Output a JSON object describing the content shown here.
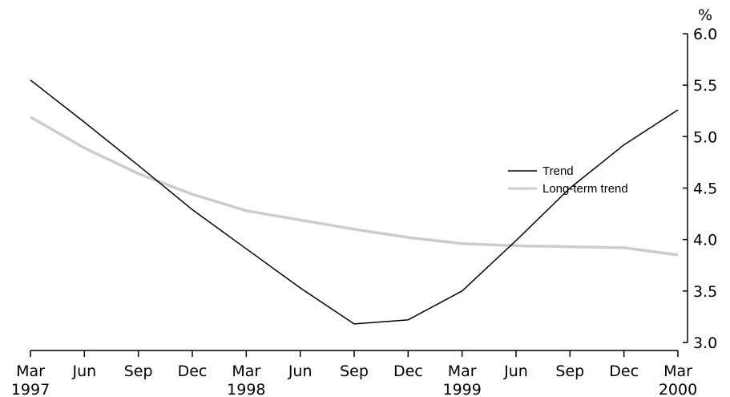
{
  "chart_data": {
    "type": "line",
    "title": "",
    "xlabel": "",
    "ylabel": "%",
    "ylim": [
      3.0,
      6.0
    ],
    "y_ticks": [
      3.0,
      3.5,
      4.0,
      4.5,
      5.0,
      5.5,
      6.0
    ],
    "y_tick_labels": [
      "3.0",
      "3.5",
      "4.0",
      "4.5",
      "5.0",
      "5.5",
      "6.0"
    ],
    "y_axis_side": "right",
    "categories": [
      "Mar",
      "Jun",
      "Sep",
      "Dec",
      "Mar",
      "Jun",
      "Sep",
      "Dec",
      "Mar",
      "Jun",
      "Sep",
      "Dec",
      "Mar"
    ],
    "year_labels": [
      {
        "index": 0,
        "label": "1997"
      },
      {
        "index": 4,
        "label": "1998"
      },
      {
        "index": 8,
        "label": "1999"
      },
      {
        "index": 12,
        "label": "2000"
      }
    ],
    "series": [
      {
        "name": "Trend",
        "color": "#000000",
        "values": [
          5.55,
          5.14,
          4.72,
          4.29,
          3.91,
          3.53,
          3.18,
          3.22,
          3.5,
          3.99,
          4.5,
          4.92,
          5.26
        ]
      },
      {
        "name": "Long-term trend",
        "color": "#cccccc",
        "values": [
          5.19,
          4.89,
          4.64,
          4.44,
          4.28,
          4.19,
          4.1,
          4.02,
          3.96,
          3.94,
          3.93,
          3.92,
          3.85
        ]
      }
    ],
    "legend_position": "right-middle",
    "grid": false
  }
}
